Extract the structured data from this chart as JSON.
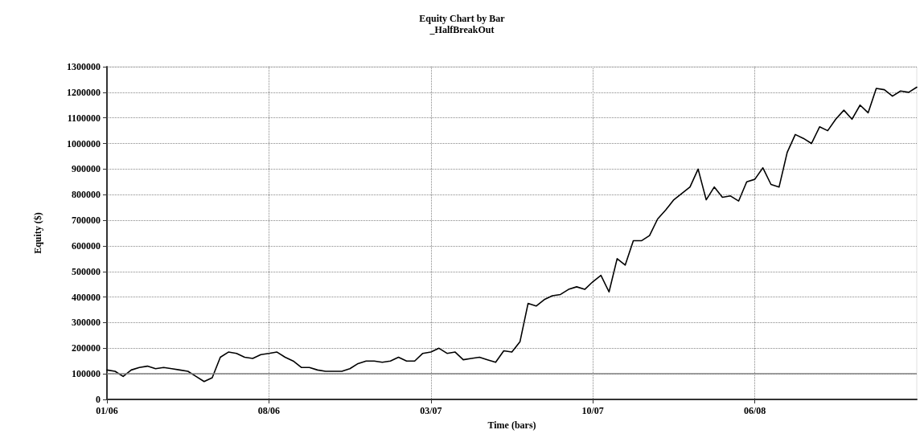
{
  "chart_data": {
    "type": "line",
    "title": "Equity Chart by Bar",
    "subtitle": "_HalfBreakOut",
    "xlabel": "Time (bars)",
    "ylabel": "Equity ($)",
    "categories": [
      "01/06",
      null,
      null,
      null,
      null,
      null,
      null,
      null,
      null,
      null,
      null,
      null,
      null,
      null,
      null,
      null,
      null,
      null,
      null,
      null,
      "08/06",
      null,
      null,
      null,
      null,
      null,
      null,
      null,
      null,
      null,
      null,
      null,
      null,
      null,
      null,
      null,
      null,
      null,
      null,
      null,
      "03/07",
      null,
      null,
      null,
      null,
      null,
      null,
      null,
      null,
      null,
      null,
      null,
      null,
      null,
      null,
      null,
      null,
      null,
      null,
      null,
      "10/07",
      null,
      null,
      null,
      null,
      null,
      null,
      null,
      null,
      null,
      null,
      null,
      null,
      null,
      null,
      null,
      null,
      null,
      null,
      null,
      "06/08",
      null,
      null,
      null,
      null,
      null,
      null,
      null,
      null,
      null,
      null,
      null,
      null,
      null,
      null,
      null,
      null,
      null,
      null,
      null,
      null
    ],
    "ylim": [
      0,
      1300000
    ],
    "yticks": [
      0,
      100000,
      200000,
      300000,
      400000,
      500000,
      600000,
      700000,
      800000,
      900000,
      1000000,
      1100000,
      1200000,
      1300000
    ],
    "grid": true,
    "marker": "none",
    "line_style": "solid",
    "ref_lines": [
      {
        "axis": "y",
        "value": 100000,
        "color": "#808080"
      }
    ],
    "series": [
      {
        "color": "#000000",
        "values": [
          115000,
          110000,
          90000,
          115000,
          125000,
          130000,
          120000,
          125000,
          120000,
          115000,
          110000,
          90000,
          70000,
          85000,
          165000,
          185000,
          180000,
          165000,
          160000,
          175000,
          180000,
          185000,
          165000,
          150000,
          125000,
          125000,
          115000,
          110000,
          110000,
          110000,
          120000,
          140000,
          150000,
          150000,
          145000,
          150000,
          165000,
          150000,
          150000,
          180000,
          185000,
          200000,
          180000,
          185000,
          155000,
          160000,
          165000,
          155000,
          145000,
          190000,
          185000,
          225000,
          375000,
          365000,
          390000,
          405000,
          410000,
          430000,
          440000,
          430000,
          460000,
          485000,
          420000,
          550000,
          525000,
          620000,
          620000,
          640000,
          705000,
          740000,
          780000,
          805000,
          830000,
          900000,
          780000,
          830000,
          790000,
          795000,
          775000,
          850000,
          860000,
          905000,
          840000,
          830000,
          965000,
          1035000,
          1020000,
          1000000,
          1065000,
          1050000,
          1095000,
          1130000,
          1095000,
          1150000,
          1120000,
          1215000,
          1210000,
          1185000,
          1205000,
          1200000,
          1220000
        ]
      }
    ]
  }
}
